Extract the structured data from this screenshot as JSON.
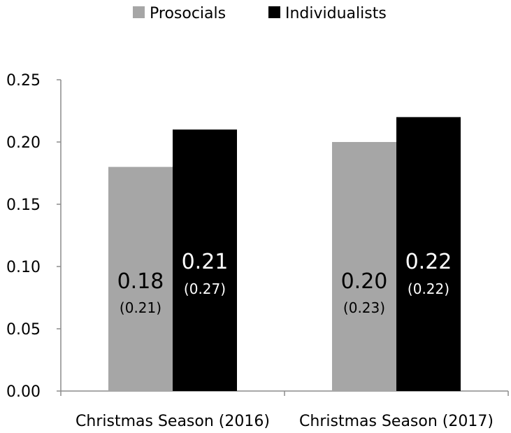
{
  "chart_data": {
    "type": "bar",
    "title": "",
    "xlabel": "",
    "ylabel": "",
    "ylim": [
      0,
      0.25
    ],
    "yticks": [
      "0.00",
      "0.05",
      "0.10",
      "0.15",
      "0.20",
      "0.25"
    ],
    "grid": false,
    "legend_position": "top-center",
    "categories": [
      "Christmas Season (2016)",
      "Christmas Season (2017)"
    ],
    "series": [
      {
        "name": "Prosocials",
        "color": "#a6a6a6",
        "values": [
          0.18,
          0.2
        ],
        "labels": [
          "0.18",
          "0.20"
        ],
        "sublabels": [
          "(0.21)",
          "(0.23)"
        ]
      },
      {
        "name": "Individualists",
        "color": "#000000",
        "values": [
          0.21,
          0.22
        ],
        "labels": [
          "0.21",
          "0.22"
        ],
        "sublabels": [
          "(0.27)",
          "(0.22)"
        ]
      }
    ]
  }
}
